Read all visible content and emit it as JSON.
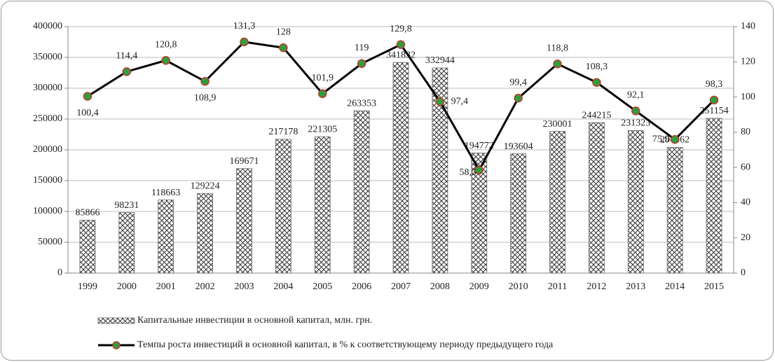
{
  "chart_data": {
    "type": "bar-line",
    "categories": [
      "1999",
      "2000",
      "2001",
      "2002",
      "2003",
      "2004",
      "2005",
      "2006",
      "2007",
      "2008",
      "2009",
      "2010",
      "2011",
      "2012",
      "2013",
      "2014",
      "2015"
    ],
    "series": [
      {
        "name": "Капитальные инвестиции в основной капитал, млн. грн.",
        "type": "bar",
        "color": "#333333",
        "values": [
          85866,
          98231,
          118663,
          129224,
          169671,
          217178,
          221305,
          263353,
          341832,
          332944,
          194772,
          193604,
          230001,
          244215,
          231323,
          204062,
          251154
        ]
      },
      {
        "name": "Темпы роста инвестиций в основной капитал, в % к соответствующему периоду предыдущего года",
        "type": "line",
        "axis": "y2",
        "color": "#000000",
        "marker_color": "#2e9e3e",
        "marker_edge": "#c0392b",
        "values": [
          100.4,
          114.4,
          120.8,
          108.9,
          131.3,
          128,
          101.9,
          119,
          129.8,
          97.4,
          58.5,
          99.4,
          118.8,
          108.3,
          92.1,
          75.9,
          98.3
        ],
        "value_labels": [
          "100,4",
          "114,4",
          "120,8",
          "108,9",
          "131,3",
          "128",
          "101,9",
          "119",
          "129,8",
          "97,4",
          "58,5",
          "99,4",
          "118,8",
          "108,3",
          "92,1",
          "75,9",
          "98,3"
        ]
      }
    ],
    "ylim": [
      0,
      400000
    ],
    "yticks": [
      0,
      50000,
      100000,
      150000,
      200000,
      250000,
      300000,
      350000,
      400000
    ],
    "y2lim": [
      0,
      140
    ],
    "y2ticks": [
      0,
      20,
      40,
      60,
      80,
      100,
      120,
      140
    ],
    "grid": true
  }
}
